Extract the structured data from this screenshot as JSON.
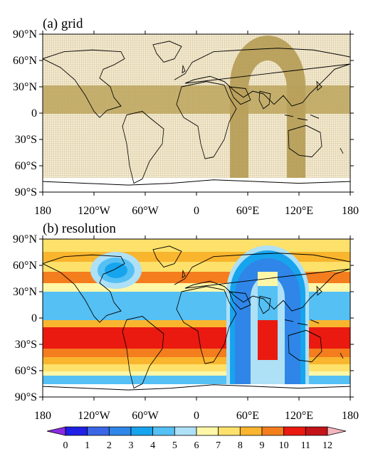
{
  "panels": [
    {
      "title": "(a) grid"
    },
    {
      "title": "(b) resolution"
    }
  ],
  "lat_ticks": [
    "90°N",
    "60°N",
    "30°N",
    "0",
    "30°S",
    "60°S",
    "90°S"
  ],
  "lon_ticks": [
    "180",
    "120°W",
    "60°W",
    "0",
    "60°E",
    "120°E",
    "180"
  ],
  "colorbar": {
    "labels": [
      "0",
      "1",
      "2",
      "3",
      "4",
      "5",
      "6",
      "7",
      "8",
      "9",
      "10",
      "11",
      "12"
    ],
    "colors": [
      "#1f1fe6",
      "#3a66e6",
      "#2f86e8",
      "#17a4ee",
      "#55c0f4",
      "#aee0f6",
      "#fff7a8",
      "#fde16a",
      "#f9b52e",
      "#f47d1e",
      "#ea1a10",
      "#c3141a"
    ],
    "under_color": "#8a2be2",
    "over_color": "#f5b5bd"
  },
  "chart_data": {
    "type": "map",
    "projection": "cylindrical-equidistant",
    "lon_range": [
      -180,
      180
    ],
    "lat_range": [
      -90,
      90
    ],
    "panels": [
      "grid",
      "resolution"
    ]
  }
}
